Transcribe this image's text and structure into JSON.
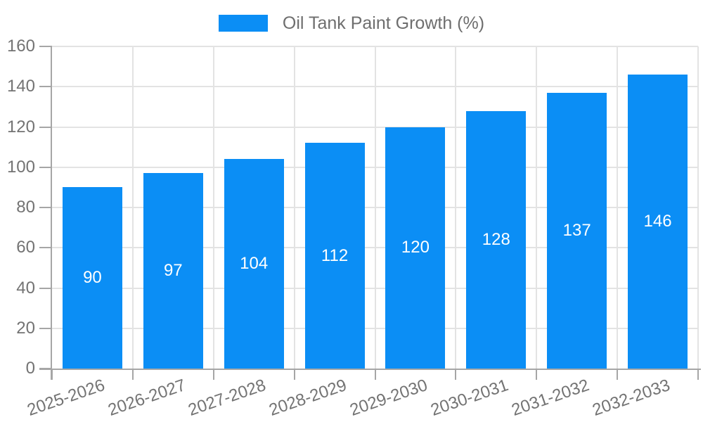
{
  "chart_data": {
    "type": "bar",
    "title": "Oil Tank Paint Growth (%)",
    "categories": [
      "2025-2026",
      "2026-2027",
      "2027-2028",
      "2028-2029",
      "2029-2030",
      "2030-2031",
      "2031-2032",
      "2032-2033"
    ],
    "values": [
      90,
      97,
      104,
      112,
      120,
      128,
      137,
      146
    ],
    "xlabel": "",
    "ylabel": "",
    "ylim": [
      0,
      160
    ],
    "ytick_step": 20,
    "yticks": [
      0,
      20,
      40,
      60,
      80,
      100,
      120,
      140,
      160
    ],
    "grid": true,
    "legend_position": "top-center",
    "value_labels": "inside-middle",
    "colors": {
      "bar": "#0b8ef5",
      "value_label": "#ffffff",
      "axis_text": "#737373",
      "legend_text": "#6e6e6e",
      "axis_line": "#a6a6a6",
      "gridline": "#e3e3e3",
      "background": "#ffffff"
    }
  }
}
